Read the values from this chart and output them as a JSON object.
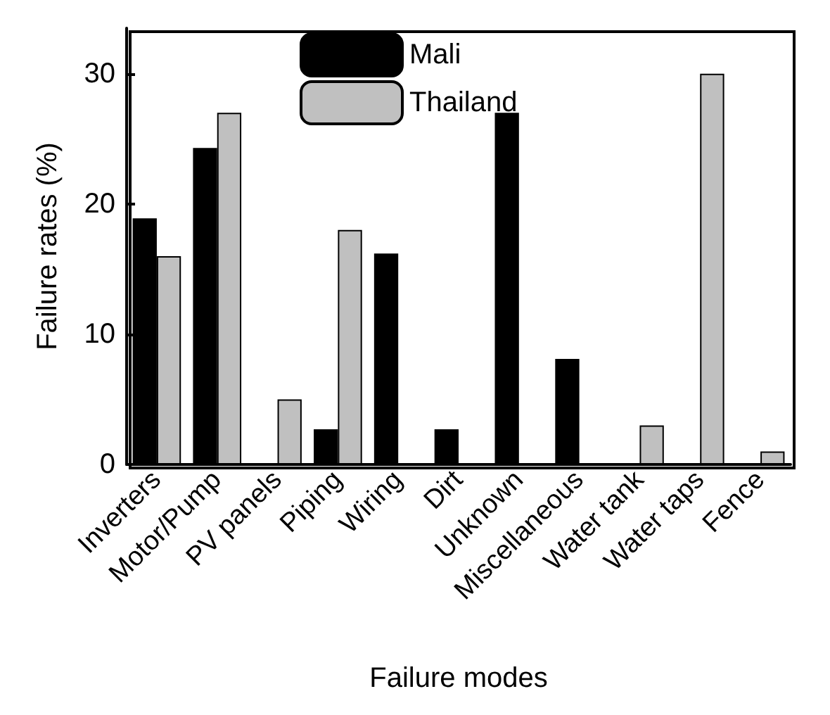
{
  "chart_data": {
    "type": "bar",
    "xlabel": "Failure modes",
    "ylabel": "Failure rates (%)",
    "categories": [
      "Inverters",
      "Motor/Pump",
      "PV panels",
      "Piping",
      "Wiring",
      "Dirt",
      "Unknown",
      "Miscellaneous",
      "Water tank",
      "Water taps",
      "Fence"
    ],
    "series": [
      {
        "name": "Mali",
        "color": "#000000",
        "values": [
          18.9,
          24.3,
          null,
          2.7,
          16.2,
          2.7,
          27,
          8.1,
          null,
          null,
          null
        ]
      },
      {
        "name": "Thailand",
        "color": "#c0c0c0",
        "values": [
          16,
          27,
          5,
          18,
          null,
          null,
          null,
          null,
          3,
          30,
          1
        ]
      }
    ],
    "ylim": [
      0,
      33.5
    ],
    "yticks": [
      0,
      10,
      20,
      30
    ],
    "grid": false,
    "legend": "top left"
  }
}
